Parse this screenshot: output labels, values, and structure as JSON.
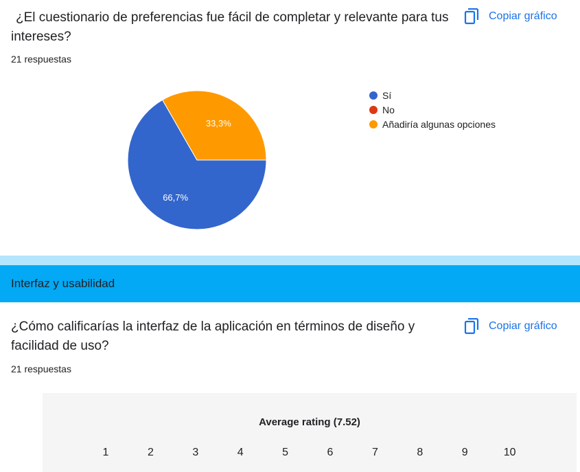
{
  "question1": {
    "title": "¿El cuestionario de preferencias fue fácil de completar y relevante para tus intereses?",
    "responses": "21 respuestas",
    "copy_label": "Copiar gráfico"
  },
  "chart_data": {
    "type": "pie",
    "slices": [
      {
        "label": "Sí",
        "value": 66.7,
        "display": "66,7%",
        "color": "#3366cc"
      },
      {
        "label": "No",
        "value": 0,
        "display": "",
        "color": "#dc3912"
      },
      {
        "label": "Añadiría algunas opciones",
        "value": 33.3,
        "display": "33,3%",
        "color": "#ff9900"
      }
    ],
    "legend_position": "right"
  },
  "section": {
    "title": "Interfaz y usabilidad"
  },
  "question2": {
    "title": "¿Cómo calificarías la interfaz de la aplicación en términos de diseño y facilidad de uso?",
    "responses": "21 respuestas",
    "copy_label": "Copiar gráfico",
    "rating_title": "Average rating (7.52)",
    "scale": [
      "1",
      "2",
      "3",
      "4",
      "5",
      "6",
      "7",
      "8",
      "9",
      "10"
    ]
  },
  "icons": {
    "copy": "copy-icon"
  },
  "colors": {
    "accent": "#1a73e8",
    "section_bg": "#03a9f4",
    "section_strip": "#b3e5fc"
  }
}
